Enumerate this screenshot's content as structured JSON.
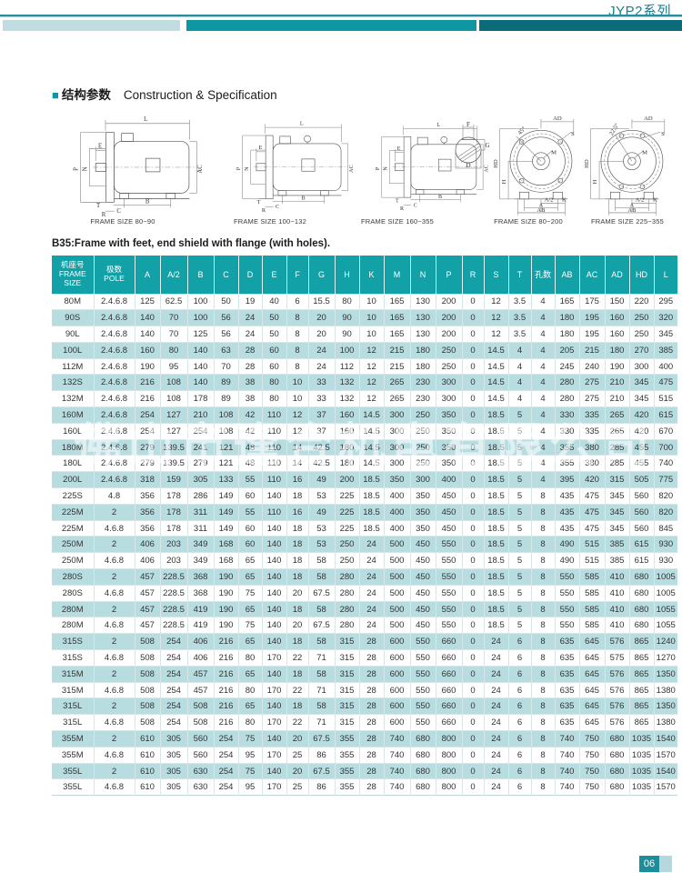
{
  "page": {
    "series_title": "JYP2系列",
    "page_number": "06",
    "watermark": "佛山市逢合机电有限公司"
  },
  "section": {
    "marker": "■",
    "title_cn": "结构参数",
    "title_en": "Construction & Specification"
  },
  "note": "B35:Frame with feet, end shield with flange (with holes).",
  "diagrams": {
    "captions": [
      "FRAME SIZE 80~90",
      "FRAME SIZE 100~132",
      "FRAME SIZE 160~355",
      "FRAME SIZE 80~200",
      "FRAME SIZE 225~355"
    ],
    "side_labels": [
      "L",
      "E",
      "N",
      "P",
      "AC",
      "T",
      "R",
      "C",
      "B"
    ],
    "shaft_labels": [
      "F",
      "G",
      "D"
    ],
    "front_labels_1": [
      "45°",
      "AD",
      "S",
      "M",
      "HD",
      "H",
      "A/2",
      "A",
      "K",
      "AB"
    ],
    "front_labels_2": [
      "22.5°",
      "AD",
      "S",
      "M",
      "HD",
      "H",
      "A/2",
      "A",
      "K",
      "AB"
    ]
  },
  "table": {
    "header": {
      "frame_cn": "机座号",
      "frame_en1": "FRAME",
      "frame_en2": "SIZE",
      "pole_cn": "极数",
      "pole_en": "POLE",
      "columns": [
        "A",
        "A/2",
        "B",
        "C",
        "D",
        "E",
        "F",
        "G",
        "H",
        "K",
        "M",
        "N",
        "P",
        "R",
        "S",
        "T",
        "孔数",
        "AB",
        "AC",
        "AD",
        "HD",
        "L"
      ]
    },
    "rows": [
      [
        "80M",
        "2.4.6.8",
        "125",
        "62.5",
        "100",
        "50",
        "19",
        "40",
        "6",
        "15.5",
        "80",
        "10",
        "165",
        "130",
        "200",
        "0",
        "12",
        "3.5",
        "4",
        "165",
        "175",
        "150",
        "220",
        "295"
      ],
      [
        "90S",
        "2.4.6.8",
        "140",
        "70",
        "100",
        "56",
        "24",
        "50",
        "8",
        "20",
        "90",
        "10",
        "165",
        "130",
        "200",
        "0",
        "12",
        "3.5",
        "4",
        "180",
        "195",
        "160",
        "250",
        "320"
      ],
      [
        "90L",
        "2.4.6.8",
        "140",
        "70",
        "125",
        "56",
        "24",
        "50",
        "8",
        "20",
        "90",
        "10",
        "165",
        "130",
        "200",
        "0",
        "12",
        "3.5",
        "4",
        "180",
        "195",
        "160",
        "250",
        "345"
      ],
      [
        "100L",
        "2.4.6.8",
        "160",
        "80",
        "140",
        "63",
        "28",
        "60",
        "8",
        "24",
        "100",
        "12",
        "215",
        "180",
        "250",
        "0",
        "14.5",
        "4",
        "4",
        "205",
        "215",
        "180",
        "270",
        "385"
      ],
      [
        "112M",
        "2.4.6.8",
        "190",
        "95",
        "140",
        "70",
        "28",
        "60",
        "8",
        "24",
        "112",
        "12",
        "215",
        "180",
        "250",
        "0",
        "14.5",
        "4",
        "4",
        "245",
        "240",
        "190",
        "300",
        "400"
      ],
      [
        "132S",
        "2.4.6.8",
        "216",
        "108",
        "140",
        "89",
        "38",
        "80",
        "10",
        "33",
        "132",
        "12",
        "265",
        "230",
        "300",
        "0",
        "14.5",
        "4",
        "4",
        "280",
        "275",
        "210",
        "345",
        "475"
      ],
      [
        "132M",
        "2.4.6.8",
        "216",
        "108",
        "178",
        "89",
        "38",
        "80",
        "10",
        "33",
        "132",
        "12",
        "265",
        "230",
        "300",
        "0",
        "14.5",
        "4",
        "4",
        "280",
        "275",
        "210",
        "345",
        "515"
      ],
      [
        "160M",
        "2.4.6.8",
        "254",
        "127",
        "210",
        "108",
        "42",
        "110",
        "12",
        "37",
        "160",
        "14.5",
        "300",
        "250",
        "350",
        "0",
        "18.5",
        "5",
        "4",
        "330",
        "335",
        "265",
        "420",
        "615"
      ],
      [
        "160L",
        "2.4.6.8",
        "254",
        "127",
        "254",
        "108",
        "42",
        "110",
        "12",
        "37",
        "160",
        "14.5",
        "300",
        "250",
        "350",
        "0",
        "18.5",
        "5",
        "4",
        "330",
        "335",
        "265",
        "420",
        "670"
      ],
      [
        "180M",
        "2.4.6.8",
        "279",
        "139.5",
        "241",
        "121",
        "48",
        "110",
        "14",
        "42.5",
        "180",
        "14.5",
        "300",
        "250",
        "350",
        "0",
        "18.5",
        "5",
        "4",
        "355",
        "380",
        "285",
        "455",
        "700"
      ],
      [
        "180L",
        "2.4.6.8",
        "279",
        "139.5",
        "279",
        "121",
        "48",
        "110",
        "14",
        "42.5",
        "180",
        "14.5",
        "300",
        "250",
        "350",
        "0",
        "18.5",
        "5",
        "4",
        "355",
        "380",
        "285",
        "455",
        "740"
      ],
      [
        "200L",
        "2.4.6.8",
        "318",
        "159",
        "305",
        "133",
        "55",
        "110",
        "16",
        "49",
        "200",
        "18.5",
        "350",
        "300",
        "400",
        "0",
        "18.5",
        "5",
        "4",
        "395",
        "420",
        "315",
        "505",
        "775"
      ],
      [
        "225S",
        "4.8",
        "356",
        "178",
        "286",
        "149",
        "60",
        "140",
        "18",
        "53",
        "225",
        "18.5",
        "400",
        "350",
        "450",
        "0",
        "18.5",
        "5",
        "8",
        "435",
        "475",
        "345",
        "560",
        "820"
      ],
      [
        "225M",
        "2",
        "356",
        "178",
        "311",
        "149",
        "55",
        "110",
        "16",
        "49",
        "225",
        "18.5",
        "400",
        "350",
        "450",
        "0",
        "18.5",
        "5",
        "8",
        "435",
        "475",
        "345",
        "560",
        "820"
      ],
      [
        "225M",
        "4.6.8",
        "356",
        "178",
        "311",
        "149",
        "60",
        "140",
        "18",
        "53",
        "225",
        "18.5",
        "400",
        "350",
        "450",
        "0",
        "18.5",
        "5",
        "8",
        "435",
        "475",
        "345",
        "560",
        "845"
      ],
      [
        "250M",
        "2",
        "406",
        "203",
        "349",
        "168",
        "60",
        "140",
        "18",
        "53",
        "250",
        "24",
        "500",
        "450",
        "550",
        "0",
        "18.5",
        "5",
        "8",
        "490",
        "515",
        "385",
        "615",
        "930"
      ],
      [
        "250M",
        "4.6.8",
        "406",
        "203",
        "349",
        "168",
        "65",
        "140",
        "18",
        "58",
        "250",
        "24",
        "500",
        "450",
        "550",
        "0",
        "18.5",
        "5",
        "8",
        "490",
        "515",
        "385",
        "615",
        "930"
      ],
      [
        "280S",
        "2",
        "457",
        "228.5",
        "368",
        "190",
        "65",
        "140",
        "18",
        "58",
        "280",
        "24",
        "500",
        "450",
        "550",
        "0",
        "18.5",
        "5",
        "8",
        "550",
        "585",
        "410",
        "680",
        "1005"
      ],
      [
        "280S",
        "4.6.8",
        "457",
        "228.5",
        "368",
        "190",
        "75",
        "140",
        "20",
        "67.5",
        "280",
        "24",
        "500",
        "450",
        "550",
        "0",
        "18.5",
        "5",
        "8",
        "550",
        "585",
        "410",
        "680",
        "1005"
      ],
      [
        "280M",
        "2",
        "457",
        "228.5",
        "419",
        "190",
        "65",
        "140",
        "18",
        "58",
        "280",
        "24",
        "500",
        "450",
        "550",
        "0",
        "18.5",
        "5",
        "8",
        "550",
        "585",
        "410",
        "680",
        "1055"
      ],
      [
        "280M",
        "4.6.8",
        "457",
        "228.5",
        "419",
        "190",
        "75",
        "140",
        "20",
        "67.5",
        "280",
        "24",
        "500",
        "450",
        "550",
        "0",
        "18.5",
        "5",
        "8",
        "550",
        "585",
        "410",
        "680",
        "1055"
      ],
      [
        "315S",
        "2",
        "508",
        "254",
        "406",
        "216",
        "65",
        "140",
        "18",
        "58",
        "315",
        "28",
        "600",
        "550",
        "660",
        "0",
        "24",
        "6",
        "8",
        "635",
        "645",
        "576",
        "865",
        "1240"
      ],
      [
        "315S",
        "4.6.8",
        "508",
        "254",
        "406",
        "216",
        "80",
        "170",
        "22",
        "71",
        "315",
        "28",
        "600",
        "550",
        "660",
        "0",
        "24",
        "6",
        "8",
        "635",
        "645",
        "575",
        "865",
        "1270"
      ],
      [
        "315M",
        "2",
        "508",
        "254",
        "457",
        "216",
        "65",
        "140",
        "18",
        "58",
        "315",
        "28",
        "600",
        "550",
        "660",
        "0",
        "24",
        "6",
        "8",
        "635",
        "645",
        "576",
        "865",
        "1350"
      ],
      [
        "315M",
        "4.6.8",
        "508",
        "254",
        "457",
        "216",
        "80",
        "170",
        "22",
        "71",
        "315",
        "28",
        "600",
        "550",
        "660",
        "0",
        "24",
        "6",
        "8",
        "635",
        "645",
        "576",
        "865",
        "1380"
      ],
      [
        "315L",
        "2",
        "508",
        "254",
        "508",
        "216",
        "65",
        "140",
        "18",
        "58",
        "315",
        "28",
        "600",
        "550",
        "660",
        "0",
        "24",
        "6",
        "8",
        "635",
        "645",
        "576",
        "865",
        "1350"
      ],
      [
        "315L",
        "4.6.8",
        "508",
        "254",
        "508",
        "216",
        "80",
        "170",
        "22",
        "71",
        "315",
        "28",
        "600",
        "550",
        "660",
        "0",
        "24",
        "6",
        "8",
        "635",
        "645",
        "576",
        "865",
        "1380"
      ],
      [
        "355M",
        "2",
        "610",
        "305",
        "560",
        "254",
        "75",
        "140",
        "20",
        "67.5",
        "355",
        "28",
        "740",
        "680",
        "800",
        "0",
        "24",
        "6",
        "8",
        "740",
        "750",
        "680",
        "1035",
        "1540"
      ],
      [
        "355M",
        "4.6.8",
        "610",
        "305",
        "560",
        "254",
        "95",
        "170",
        "25",
        "86",
        "355",
        "28",
        "740",
        "680",
        "800",
        "0",
        "24",
        "6",
        "8",
        "740",
        "750",
        "680",
        "1035",
        "1570"
      ],
      [
        "355L",
        "2",
        "610",
        "305",
        "630",
        "254",
        "75",
        "140",
        "20",
        "67.5",
        "355",
        "28",
        "740",
        "680",
        "800",
        "0",
        "24",
        "6",
        "8",
        "740",
        "750",
        "680",
        "1035",
        "1540"
      ],
      [
        "355L",
        "4.6.8",
        "610",
        "305",
        "630",
        "254",
        "95",
        "170",
        "25",
        "86",
        "355",
        "28",
        "740",
        "680",
        "800",
        "0",
        "24",
        "6",
        "8",
        "740",
        "750",
        "680",
        "1035",
        "1570"
      ]
    ]
  },
  "colors": {
    "header_teal": "#12a1a7",
    "row_alt_teal": "#b7dde1",
    "bar_light": "#c2dde1",
    "bar_mid": "#0e96a2",
    "bar_dark": "#0b6b7b",
    "title_teal": "#177e92",
    "badge_teal": "#1d8d99"
  }
}
